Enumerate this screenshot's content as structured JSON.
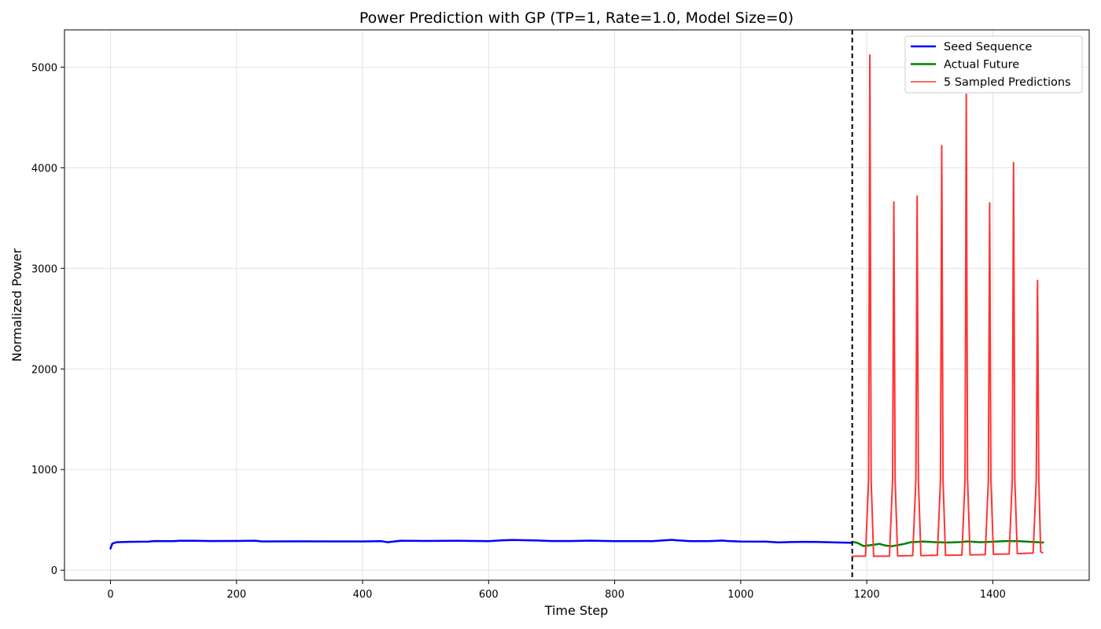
{
  "chart_data": {
    "type": "line",
    "title": "Power Prediction with GP (TP=1, Rate=1.0, Model Size=0)",
    "xlabel": "Time Step",
    "ylabel": "Normalized Power",
    "xlim": [
      -73,
      1553
    ],
    "ylim": [
      -100,
      5370
    ],
    "xticks": [
      0,
      200,
      400,
      600,
      800,
      1000,
      1200,
      1400
    ],
    "yticks": [
      0,
      1000,
      2000,
      3000,
      4000,
      5000
    ],
    "grid": true,
    "legend_position": "top-right",
    "seed_end": 1177,
    "series": [
      {
        "name": "Seed Sequence",
        "color": "#0000ff",
        "points": [
          [
            0,
            215
          ],
          [
            3,
            265
          ],
          [
            10,
            278
          ],
          [
            30,
            282
          ],
          [
            60,
            284
          ],
          [
            70,
            290
          ],
          [
            100,
            288
          ],
          [
            110,
            292
          ],
          [
            130,
            293
          ],
          [
            160,
            290
          ],
          [
            200,
            291
          ],
          [
            230,
            292
          ],
          [
            240,
            286
          ],
          [
            300,
            287
          ],
          [
            360,
            286
          ],
          [
            400,
            286
          ],
          [
            430,
            288
          ],
          [
            440,
            278
          ],
          [
            460,
            292
          ],
          [
            500,
            291
          ],
          [
            550,
            292
          ],
          [
            600,
            289
          ],
          [
            620,
            296
          ],
          [
            640,
            300
          ],
          [
            680,
            295
          ],
          [
            700,
            290
          ],
          [
            730,
            290
          ],
          [
            760,
            294
          ],
          [
            800,
            289
          ],
          [
            860,
            289
          ],
          [
            890,
            302
          ],
          [
            900,
            296
          ],
          [
            920,
            288
          ],
          [
            950,
            289
          ],
          [
            970,
            295
          ],
          [
            980,
            290
          ],
          [
            1000,
            285
          ],
          [
            1040,
            284
          ],
          [
            1060,
            276
          ],
          [
            1080,
            280
          ],
          [
            1100,
            282
          ],
          [
            1120,
            281
          ],
          [
            1150,
            276
          ],
          [
            1177,
            272
          ]
        ]
      },
      {
        "name": "Actual Future",
        "color": "#008000",
        "points": [
          [
            1177,
            282
          ],
          [
            1185,
            272
          ],
          [
            1195,
            240
          ],
          [
            1210,
            252
          ],
          [
            1220,
            262
          ],
          [
            1230,
            245
          ],
          [
            1240,
            238
          ],
          [
            1250,
            250
          ],
          [
            1260,
            262
          ],
          [
            1270,
            278
          ],
          [
            1290,
            285
          ],
          [
            1310,
            278
          ],
          [
            1330,
            275
          ],
          [
            1350,
            280
          ],
          [
            1360,
            286
          ],
          [
            1380,
            278
          ],
          [
            1400,
            283
          ],
          [
            1420,
            290
          ],
          [
            1440,
            288
          ],
          [
            1460,
            282
          ],
          [
            1480,
            275
          ]
        ]
      },
      {
        "name": "5 Sampled Predictions",
        "color": "#ff3333",
        "points": [
          [
            1177,
            138
          ],
          [
            1198,
            140
          ],
          [
            1203,
            900
          ],
          [
            1205,
            5120
          ],
          [
            1207,
            900
          ],
          [
            1211,
            138
          ],
          [
            1236,
            140
          ],
          [
            1241,
            900
          ],
          [
            1243,
            3660
          ],
          [
            1245,
            900
          ],
          [
            1249,
            142
          ],
          [
            1273,
            145
          ],
          [
            1278,
            900
          ],
          [
            1280,
            3720
          ],
          [
            1282,
            900
          ],
          [
            1286,
            145
          ],
          [
            1312,
            148
          ],
          [
            1317,
            900
          ],
          [
            1319,
            4220
          ],
          [
            1321,
            900
          ],
          [
            1325,
            148
          ],
          [
            1351,
            150
          ],
          [
            1356,
            900
          ],
          [
            1358,
            4730
          ],
          [
            1360,
            900
          ],
          [
            1364,
            152
          ],
          [
            1388,
            155
          ],
          [
            1393,
            900
          ],
          [
            1395,
            3650
          ],
          [
            1397,
            900
          ],
          [
            1401,
            158
          ],
          [
            1426,
            162
          ],
          [
            1431,
            900
          ],
          [
            1433,
            4050
          ],
          [
            1435,
            900
          ],
          [
            1439,
            165
          ],
          [
            1464,
            170
          ],
          [
            1469,
            900
          ],
          [
            1471,
            2880
          ],
          [
            1473,
            900
          ],
          [
            1476,
            185
          ],
          [
            1479,
            172
          ]
        ]
      }
    ]
  }
}
